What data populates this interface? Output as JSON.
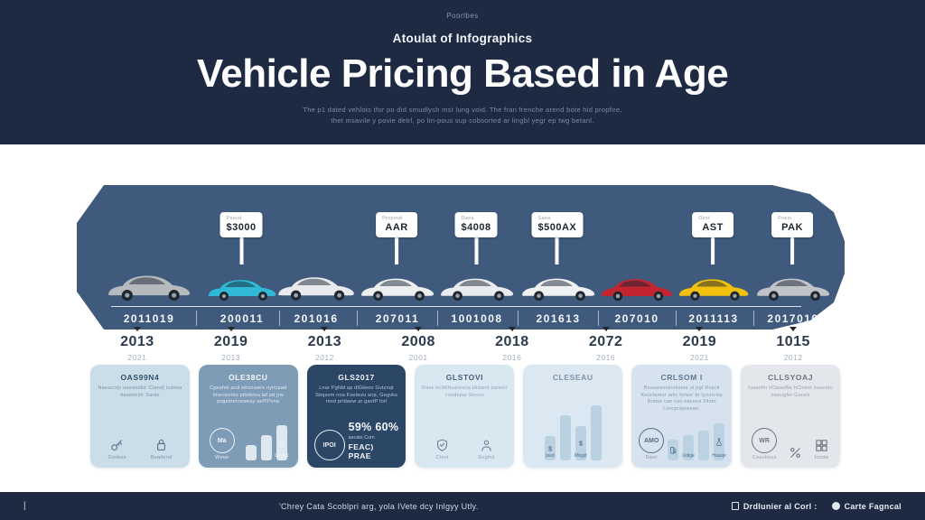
{
  "header": {
    "kicker": "Poorlbes",
    "subheading": "Atoulat of Infographics",
    "title": "Vehicle Pricing Based in Age",
    "description_line1": "The p1 dated vehlots tfor po did smudlysh mst lung void. The fran frenche arend bote hid propfire,",
    "description_line2": "thet msavile y povie detrl, po lin-pous sup cobsorted ar lingbl yegr ep twg betanl."
  },
  "timeline": {
    "band_color": "#3f5a7c",
    "cars": [
      {
        "name": "silver-sedan",
        "color": "#b6b9be",
        "odometer": "2011019",
        "tag": null
      },
      {
        "name": "cyan-coupe",
        "color": "#2fb9d6",
        "odometer": "200011",
        "tag": {
          "caption": "Pseud",
          "value": "$3000"
        }
      },
      {
        "name": "white-sedan",
        "color": "#e8eaed",
        "odometer": "201016",
        "tag": null
      },
      {
        "name": "white-sports",
        "color": "#eceef0",
        "odometer": "207011",
        "tag": {
          "caption": "Propinal",
          "value": "AAR"
        }
      },
      {
        "name": "white-suv",
        "color": "#e9ebee",
        "odometer": "1001008",
        "tag": {
          "caption": "Daea",
          "value": "$4008"
        }
      },
      {
        "name": "white-hatch",
        "color": "#eff0f2",
        "odometer": "201613",
        "tag": {
          "caption": "Saea",
          "value": "$500AX"
        }
      },
      {
        "name": "red-sedan",
        "color": "#c22430",
        "odometer": "207010",
        "tag": null
      },
      {
        "name": "yellow-coupe",
        "color": "#f2c10e",
        "odometer": "2011113",
        "tag": {
          "caption": "Oest",
          "value": "AST"
        }
      },
      {
        "name": "silver-sedan-2",
        "color": "#c0c3c8",
        "odometer": "2017010",
        "tag": {
          "caption": "Poesi",
          "value": "PAK"
        }
      }
    ]
  },
  "years": [
    {
      "year": "2013",
      "sub": "2021"
    },
    {
      "year": "2019",
      "sub": "2013"
    },
    {
      "year": "2013",
      "sub": "2012"
    },
    {
      "year": "2008",
      "sub": "2001"
    },
    {
      "year": "2018",
      "sub": "2016"
    },
    {
      "year": "2072",
      "sub": "2016"
    },
    {
      "year": "2019",
      "sub": "2021"
    },
    {
      "year": "1015",
      "sub": "2012"
    }
  ],
  "cards": [
    {
      "name": "card-oas99n4",
      "title": "OAS99N4",
      "body": "Naescrxjc oaeandild 'Cland] tudnsa daaeenldr Sarde",
      "bg": "#cbdde9",
      "fg": "#31506b",
      "muted": "#7d93a6",
      "icon_color": "#5a7790",
      "bar_color": "#b9d1e1",
      "icons": [
        {
          "icon": "key",
          "label": "Deebes"
        },
        {
          "icon": "bag",
          "label": "Beadend"
        }
      ]
    },
    {
      "name": "card-ole38cu",
      "title": "OLE38CU",
      "body": "Cgeafek and whsnawrx nytrcpad Imecwnnto pibdelea laf pd jrw pvgsbnrlceweay asfYPvna",
      "bg": "#7f9cb6",
      "fg": "#f4f8fb",
      "muted": "#e2ebf3",
      "icon_color": "#eef4f9",
      "bar_color": "#dde8f1",
      "badge": {
        "text": "Ma",
        "label": "Wmar"
      },
      "bars": {
        "heights": [
          0.38,
          0.6,
          0.85
        ],
        "glyphs": [
          "",
          "",
          "person"
        ],
        "labels": [
          "",
          "",
          "Geapd"
        ]
      }
    },
    {
      "name": "card-gls2017",
      "title": "GLS2017",
      "body": "Lnar Pgfdd ap dlGtwoo Gvtznqt Sbqzem noa Fsetwzu wrp, Gegvks resd prldaew ar gavtP forl",
      "bg": "#2c4665",
      "fg": "#f2f6fa",
      "muted": "#b9c7d6",
      "icon_color": "#e8eef5",
      "bar_color": "#dde8f1",
      "badge": {
        "text": "IPOI",
        "label": ""
      },
      "stat": {
        "big": "59% 60%",
        "mid": "ascats Cum",
        "bottom": "FEAC) PRAE"
      }
    },
    {
      "name": "card-glstovi",
      "title": "GLSTOVI",
      "body": "Rase bctWfeuesncia Htdand damer/ condepar Renes",
      "bg": "#d9e7f1",
      "fg": "#44607b",
      "muted": "#8fa3b5",
      "icon_color": "#6c8499",
      "bar_color": "#b9d1e1",
      "icons": [
        {
          "icon": "shield",
          "label": "Ctent"
        },
        {
          "icon": "person",
          "label": "Englnd"
        }
      ]
    },
    {
      "name": "card-cleseau",
      "title": "CLESEAU",
      "body": "",
      "bg": "#dbe8f2",
      "fg": "#7c93a8",
      "muted": "#8fa3b5",
      "icon_color": "#54708c",
      "bar_color": "#b9d1e1",
      "bars": {
        "heights": [
          0.42,
          0.78,
          0.6,
          0.95
        ],
        "glyphs": [
          "money",
          "",
          "money",
          ""
        ],
        "labels": [
          "(aud",
          "",
          "Mbgjd",
          ""
        ]
      }
    },
    {
      "name": "card-crlsom",
      "title": "CRLSOM I",
      "body": "Bnsearerosvrlisner ul pgf Rxack Keuvlaresr arlic forws' br lyrcro-ba Rutwo cae cau eaxeea 24sto Lorvgcepreeae.",
      "bg": "#d6e3ee",
      "fg": "#5d7992",
      "muted": "#869aac",
      "icon_color": "#4f6b86",
      "bar_color": "#bad2e2",
      "badge": {
        "text": "AMO",
        "label": "Dwel"
      },
      "bars": {
        "heights": [
          0.5,
          0.6,
          0.72,
          0.9
        ],
        "glyphs": [
          "pump",
          "",
          "",
          "flask"
        ],
        "labels": [
          "",
          "Lidige",
          "",
          "Haasje"
        ]
      }
    },
    {
      "name": "card-cllsyoaj",
      "title": "CLLSYOAJ",
      "body": "Iuaaofin hOaaoWe hCioext naeeatu owsugfer Ganeb",
      "bg": "#e3e6ea",
      "fg": "#6c7680",
      "muted": "#98a1ab",
      "icon_color": "#6c7680",
      "bar_color": "#c3cad1",
      "badge": {
        "text": "WR",
        "label": "Ceaubous"
      },
      "icons": [
        {
          "icon": "percent",
          "label": ""
        },
        {
          "icon": "grid",
          "label": "Iondw"
        }
      ]
    }
  ],
  "footer": {
    "divider": "|",
    "note": "'Chrey Cata Scoblpri arg, yola IVete dcy Inlgyy Utly.",
    "credits": [
      {
        "icon": "document",
        "label": "Drdlunier al Corl :"
      },
      {
        "icon": "globe",
        "label": "Carte Fagncal"
      }
    ]
  }
}
